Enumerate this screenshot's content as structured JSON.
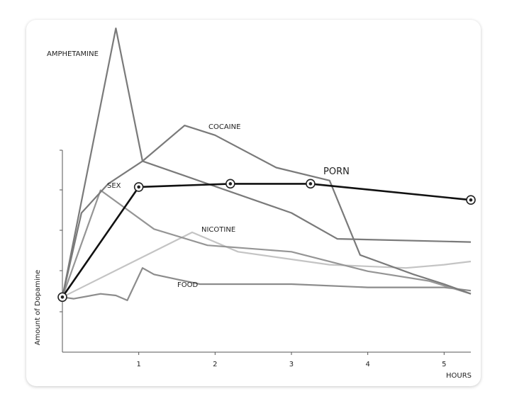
{
  "chart_data": {
    "type": "line",
    "xlabel": "HOURS",
    "ylabel": "Amount of Dopamine",
    "xlim": [
      0,
      5.35
    ],
    "ylim": [
      0,
      1
    ],
    "x_ticks": [
      "1",
      "2",
      "3",
      "4",
      "5"
    ],
    "grid": false,
    "series": [
      {
        "name": "AMPHETAMINE",
        "color": "#7a7a7a",
        "points": [
          [
            0,
            0.17
          ],
          [
            0.7,
            1.0
          ],
          [
            1.05,
            0.59
          ],
          [
            3.0,
            0.43
          ],
          [
            3.6,
            0.35
          ],
          [
            5.35,
            0.34
          ]
        ]
      },
      {
        "name": "COCAINE",
        "color": "#7a7a7a",
        "points": [
          [
            0,
            0.17
          ],
          [
            0.25,
            0.43
          ],
          [
            0.6,
            0.52
          ],
          [
            1.05,
            0.59
          ],
          [
            1.6,
            0.7
          ],
          [
            2.0,
            0.67
          ],
          [
            2.8,
            0.57
          ],
          [
            3.5,
            0.53
          ],
          [
            3.9,
            0.3
          ],
          [
            4.6,
            0.24
          ],
          [
            5.0,
            0.21
          ],
          [
            5.35,
            0.18
          ]
        ]
      },
      {
        "name": "PORN",
        "color": "#111111",
        "points": [
          [
            0,
            0.17
          ],
          [
            1.0,
            0.51
          ],
          [
            2.2,
            0.52
          ],
          [
            3.25,
            0.52
          ],
          [
            5.35,
            0.47
          ]
        ]
      },
      {
        "name": "SEX",
        "color": "#959595",
        "points": [
          [
            0,
            0.17
          ],
          [
            0.5,
            0.5
          ],
          [
            1.2,
            0.38
          ],
          [
            1.9,
            0.33
          ],
          [
            3.0,
            0.31
          ],
          [
            4.0,
            0.25
          ],
          [
            4.8,
            0.22
          ],
          [
            5.35,
            0.18
          ]
        ]
      },
      {
        "name": "NICOTINE",
        "color": "#c4c4c4",
        "points": [
          [
            0,
            0.17
          ],
          [
            1.7,
            0.37
          ],
          [
            2.3,
            0.31
          ],
          [
            3.5,
            0.27
          ],
          [
            4.5,
            0.26
          ],
          [
            5.0,
            0.27
          ],
          [
            5.35,
            0.28
          ]
        ]
      },
      {
        "name": "FOOD",
        "color": "#8c8c8c",
        "points": [
          [
            0,
            0.17
          ],
          [
            0.15,
            0.165
          ],
          [
            0.5,
            0.18
          ],
          [
            0.7,
            0.175
          ],
          [
            0.85,
            0.16
          ],
          [
            1.05,
            0.26
          ],
          [
            1.2,
            0.24
          ],
          [
            1.8,
            0.21
          ],
          [
            2.2,
            0.21
          ],
          [
            3.0,
            0.21
          ],
          [
            4.0,
            0.2
          ],
          [
            5.0,
            0.2
          ],
          [
            5.35,
            0.19
          ]
        ]
      }
    ]
  }
}
